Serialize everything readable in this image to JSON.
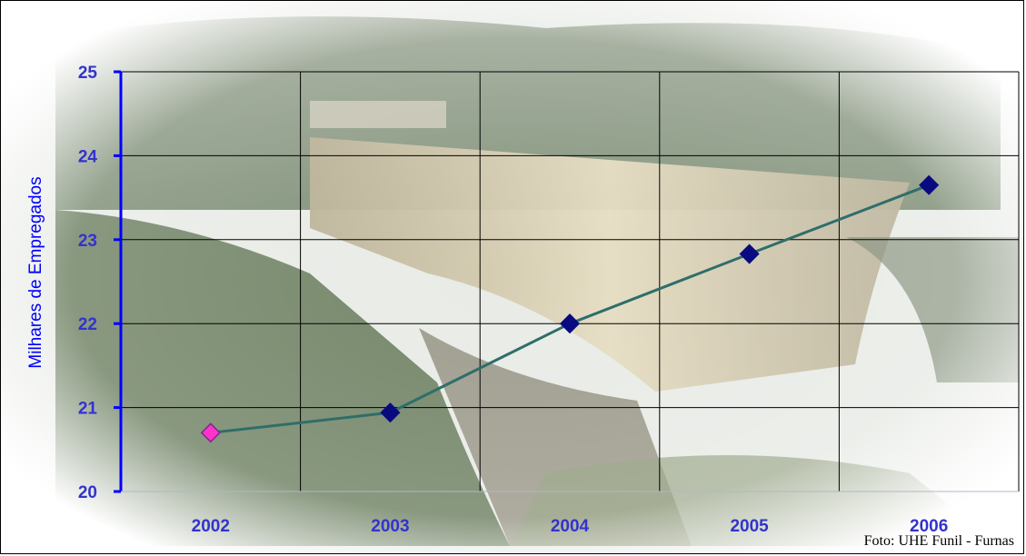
{
  "chart_data": {
    "type": "line",
    "categories": [
      "2002",
      "2003",
      "2004",
      "2005",
      "2006"
    ],
    "series": [
      {
        "values": [
          20.7,
          20.94,
          22.0,
          22.83,
          23.65
        ]
      }
    ],
    "ylabel": "Milhares de Empregados",
    "xlabel": "",
    "ylim": [
      20,
      25
    ],
    "yticks": [
      "20",
      "21",
      "22",
      "23",
      "24",
      "25"
    ],
    "grid": true,
    "colors": {
      "line": "#2e6e6a",
      "marker": "#0a0a80",
      "first_marker": "#ff33cc",
      "axis": "#0000ff",
      "tick_labels": "#3333cc",
      "grid": "#000000"
    }
  },
  "background": {
    "image": "dam-photo",
    "credit": "Foto: UHE Funil - Furnas"
  }
}
